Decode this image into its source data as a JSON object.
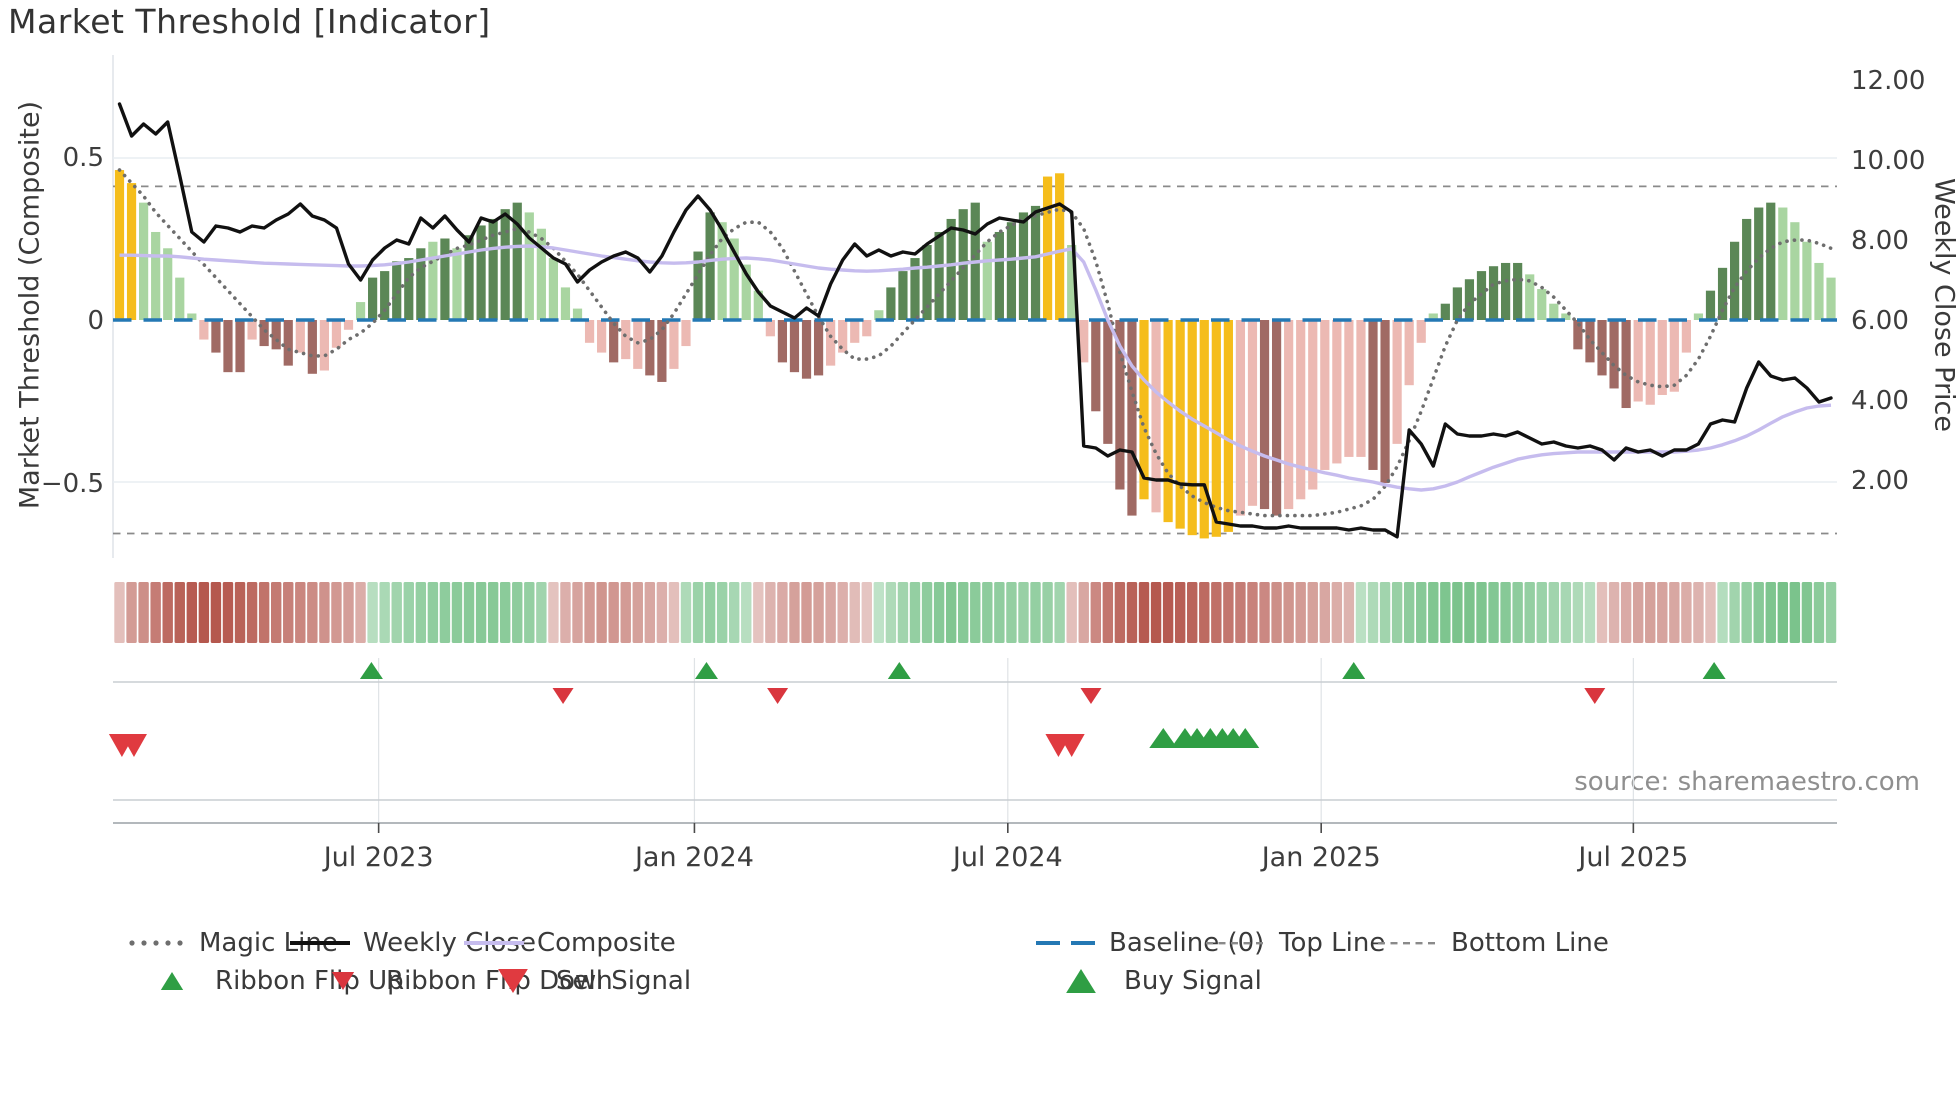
{
  "header": {
    "title": "Market Threshold [Indicator]"
  },
  "axes": {
    "left_title": "Market Threshold (Composite)",
    "right_title": "Weekly Close Price",
    "left_tick_labels": [
      "0.5",
      "0",
      "−0.5"
    ],
    "left_tick_values": [
      0.5,
      0,
      -0.5
    ],
    "right_tick_labels": [
      "12.00",
      "10.00",
      "8.00",
      "6.00",
      "4.00",
      "2.00"
    ],
    "right_tick_values": [
      12,
      10,
      8,
      6,
      4,
      2
    ],
    "x_tick_labels": [
      "Jul 2023",
      "Jan 2024",
      "Jul 2024",
      "Jan 2025",
      "Jul 2025"
    ],
    "x_tick_weeks": [
      21.5,
      47.7,
      73.7,
      99.7,
      125.6
    ]
  },
  "footer": {
    "source": "source: sharemaestro.com"
  },
  "palette": {
    "bar_yellow": "#f5bd1b",
    "bar_light_green": "#a9d5a1",
    "bar_dark_green": "#5b8756",
    "bar_light_pink": "#ecb9b3",
    "bar_dark_red": "#a06a64",
    "weekly_close": "#111111",
    "composite": "#c6bcee",
    "magic_line": "#6e6e6e",
    "baseline": "#2478b4",
    "top_bottom_line": "#8a8a8a",
    "flip_up_green": "#2f9e44",
    "flip_down_red": "#d9363e",
    "sell_red": "#e03a40",
    "buy_green": "#2f9e44",
    "ribbon_red": "#ab4136",
    "ribbon_green": "#31a24c",
    "grid": "#e9eef2",
    "spine": "#9aa0a6",
    "panel_line": "#c9cdd2",
    "tick_text": "#3d3d3d"
  },
  "legend": {
    "row1": [
      {
        "key": "magic-line",
        "label": "Magic Line",
        "swatch": "dots",
        "color": "#6e6e6e"
      },
      {
        "key": "weekly-close",
        "label": "Weekly Close",
        "swatch": "line",
        "color": "#111111"
      },
      {
        "key": "composite",
        "label": "Composite",
        "swatch": "line",
        "color": "#c6bcee"
      },
      {
        "key": "baseline",
        "label": "Baseline (0)",
        "swatch": "dash2",
        "color": "#2478b4"
      },
      {
        "key": "top-line",
        "label": "Top Line",
        "swatch": "dashes",
        "color": "#8a8a8a"
      },
      {
        "key": "bottom-line",
        "label": "Bottom Line",
        "swatch": "dashes",
        "color": "#8a8a8a"
      }
    ],
    "row2": [
      {
        "key": "ribbon-flip-up",
        "label": "Ribbon Flip Up",
        "swatch": "tri-up",
        "color": "#2f9e44",
        "size": 18
      },
      {
        "key": "ribbon-flip-down",
        "label": "Ribbon Flip Down",
        "swatch": "tri-down",
        "color": "#d9363e",
        "size": 18
      },
      {
        "key": "sell-signal",
        "label": "Sell Signal",
        "swatch": "tri-down",
        "color": "#e03a40",
        "size": 24
      },
      {
        "key": "buy-signal",
        "label": "Buy Signal",
        "swatch": "tri-up",
        "color": "#2f9e44",
        "size": 24
      }
    ]
  },
  "chart_data": [
    {
      "name": "main-indicator-panel",
      "type": "bar",
      "title": "Market Threshold [Indicator]",
      "xlabel": "",
      "ylabel": "Market Threshold (Composite)",
      "ylabel_right": "Weekly Close Price",
      "ylim_left": [
        -0.73,
        0.81
      ],
      "ylim_right": [
        0.05,
        12.6
      ],
      "top_line": 0.41,
      "bottom_line": -0.655,
      "baseline": 0,
      "x_unit": "week",
      "n_weeks": 143,
      "x_tick_labels": [
        "Jul 2023",
        "Jan 2024",
        "Jul 2024",
        "Jan 2025",
        "Jul 2025"
      ],
      "x_tick_weeks": [
        21.5,
        47.7,
        73.7,
        99.7,
        125.6
      ],
      "grid": "horizontal-only",
      "legend_position": "below",
      "bars": {
        "name": "Market Threshold histogram",
        "values": [
          0.46,
          0.42,
          0.36,
          0.27,
          0.22,
          0.13,
          0.02,
          -0.06,
          -0.1,
          -0.16,
          -0.16,
          -0.06,
          -0.08,
          -0.09,
          -0.14,
          -0.1,
          -0.165,
          -0.155,
          -0.085,
          -0.03,
          0.055,
          0.13,
          0.15,
          0.18,
          0.19,
          0.22,
          0.24,
          0.25,
          0.22,
          0.26,
          0.29,
          0.31,
          0.34,
          0.36,
          0.33,
          0.28,
          0.19,
          0.1,
          0.035,
          -0.07,
          -0.1,
          -0.13,
          -0.12,
          -0.15,
          -0.17,
          -0.19,
          -0.15,
          -0.08,
          0.21,
          0.33,
          0.3,
          0.25,
          0.17,
          0.09,
          -0.05,
          -0.13,
          -0.16,
          -0.18,
          -0.17,
          -0.14,
          -0.1,
          -0.07,
          -0.05,
          0.03,
          0.1,
          0.15,
          0.19,
          0.23,
          0.27,
          0.31,
          0.34,
          0.36,
          0.24,
          0.27,
          0.3,
          0.33,
          0.35,
          0.44,
          0.45,
          0.23,
          -0.13,
          -0.28,
          -0.38,
          -0.52,
          -0.6,
          -0.55,
          -0.59,
          -0.62,
          -0.64,
          -0.66,
          -0.67,
          -0.665,
          -0.65,
          -0.6,
          -0.57,
          -0.58,
          -0.6,
          -0.58,
          -0.55,
          -0.52,
          -0.46,
          -0.44,
          -0.42,
          -0.42,
          -0.46,
          -0.5,
          -0.38,
          -0.2,
          -0.07,
          0.02,
          0.05,
          0.1,
          0.125,
          0.15,
          0.165,
          0.175,
          0.175,
          0.14,
          0.095,
          0.05,
          0.02,
          -0.09,
          -0.13,
          -0.17,
          -0.21,
          -0.27,
          -0.25,
          -0.26,
          -0.23,
          -0.22,
          -0.1,
          0.02,
          0.09,
          0.16,
          0.24,
          0.31,
          0.345,
          0.36,
          0.345,
          0.3,
          0.24,
          0.175,
          0.13
        ],
        "colors": [
          "y",
          "y",
          "lg",
          "lg",
          "lg",
          "lg",
          "lg",
          "lp",
          "dr",
          "dr",
          "dr",
          "lp",
          "dr",
          "dr",
          "dr",
          "lp",
          "dr",
          "lp",
          "lp",
          "lp",
          "lg",
          "dg",
          "dg",
          "dg",
          "dg",
          "dg",
          "lg",
          "dg",
          "lg",
          "dg",
          "dg",
          "dg",
          "dg",
          "dg",
          "lg",
          "lg",
          "lg",
          "lg",
          "lg",
          "lp",
          "lp",
          "dr",
          "lp",
          "lp",
          "dr",
          "dr",
          "lp",
          "lp",
          "dg",
          "dg",
          "lg",
          "lg",
          "lg",
          "lg",
          "lp",
          "dr",
          "dr",
          "dr",
          "dr",
          "lp",
          "lp",
          "lp",
          "lp",
          "lg",
          "dg",
          "dg",
          "dg",
          "dg",
          "dg",
          "dg",
          "dg",
          "dg",
          "lg",
          "dg",
          "dg",
          "dg",
          "dg",
          "y",
          "y",
          "lg",
          "lp",
          "dr",
          "dr",
          "dr",
          "dr",
          "y",
          "lp",
          "y",
          "y",
          "y",
          "y",
          "y",
          "y",
          "lp",
          "lp",
          "dr",
          "dr",
          "lp",
          "lp",
          "lp",
          "lp",
          "lp",
          "lp",
          "lp",
          "dr",
          "dr",
          "lp",
          "lp",
          "lp",
          "lg",
          "dg",
          "dg",
          "dg",
          "dg",
          "dg",
          "dg",
          "dg",
          "lg",
          "lg",
          "lg",
          "lg",
          "dr",
          "dr",
          "dr",
          "dr",
          "dr",
          "lp",
          "lp",
          "lp",
          "lp",
          "lp",
          "lg",
          "dg",
          "dg",
          "dg",
          "dg",
          "dg",
          "dg",
          "lg",
          "lg",
          "lg",
          "lg",
          "lg"
        ]
      },
      "series": [
        {
          "name": "Weekly Close",
          "axis": "right",
          "style": "solid-black",
          "values": [
            11.4,
            10.6,
            10.9,
            10.65,
            10.95,
            9.6,
            8.2,
            7.95,
            8.35,
            8.3,
            8.2,
            8.35,
            8.3,
            8.5,
            8.65,
            8.9,
            8.6,
            8.5,
            8.3,
            7.4,
            7.0,
            7.5,
            7.8,
            8.0,
            7.9,
            8.55,
            8.3,
            8.6,
            8.25,
            7.95,
            8.55,
            8.45,
            8.65,
            8.4,
            8.05,
            7.8,
            7.55,
            7.4,
            6.95,
            7.25,
            7.45,
            7.6,
            7.7,
            7.55,
            7.2,
            7.6,
            8.2,
            8.75,
            9.1,
            8.75,
            8.25,
            7.7,
            7.15,
            6.7,
            6.35,
            6.2,
            6.05,
            6.3,
            6.1,
            6.9,
            7.5,
            7.9,
            7.6,
            7.75,
            7.6,
            7.7,
            7.65,
            7.9,
            8.1,
            8.3,
            8.25,
            8.15,
            8.4,
            8.55,
            8.5,
            8.45,
            8.7,
            8.8,
            8.9,
            8.7,
            2.85,
            2.8,
            2.6,
            2.75,
            2.7,
            2.05,
            2.0,
            2.0,
            1.9,
            1.88,
            1.88,
            0.95,
            0.9,
            0.85,
            0.85,
            0.8,
            0.8,
            0.85,
            0.8,
            0.8,
            0.8,
            0.8,
            0.75,
            0.8,
            0.75,
            0.75,
            0.58,
            3.25,
            2.9,
            2.35,
            3.4,
            3.15,
            3.1,
            3.1,
            3.15,
            3.1,
            3.2,
            3.05,
            2.9,
            2.95,
            2.85,
            2.8,
            2.85,
            2.75,
            2.5,
            2.8,
            2.7,
            2.75,
            2.6,
            2.75,
            2.75,
            2.9,
            3.4,
            3.5,
            3.45,
            4.3,
            4.95,
            4.6,
            4.5,
            4.55,
            4.3,
            3.95,
            4.05
          ]
        },
        {
          "name": "Composite",
          "axis": "right",
          "style": "solid-lavender",
          "values": [
            7.62,
            7.62,
            7.61,
            7.6,
            7.6,
            7.58,
            7.55,
            7.52,
            7.5,
            7.48,
            7.46,
            7.44,
            7.42,
            7.41,
            7.4,
            7.39,
            7.38,
            7.37,
            7.36,
            7.35,
            7.35,
            7.36,
            7.38,
            7.41,
            7.45,
            7.5,
            7.55,
            7.6,
            7.65,
            7.7,
            7.75,
            7.79,
            7.82,
            7.84,
            7.85,
            7.83,
            7.8,
            7.75,
            7.7,
            7.65,
            7.6,
            7.56,
            7.52,
            7.48,
            7.45,
            7.43,
            7.42,
            7.43,
            7.45,
            7.49,
            7.52,
            7.54,
            7.55,
            7.53,
            7.5,
            7.45,
            7.4,
            7.35,
            7.3,
            7.27,
            7.25,
            7.23,
            7.22,
            7.23,
            7.25,
            7.27,
            7.3,
            7.32,
            7.35,
            7.38,
            7.42,
            7.45,
            7.48,
            7.5,
            7.52,
            7.55,
            7.58,
            7.65,
            7.72,
            7.78,
            7.45,
            6.75,
            6.0,
            5.35,
            4.85,
            4.5,
            4.2,
            3.95,
            3.72,
            3.52,
            3.35,
            3.18,
            3.0,
            2.85,
            2.72,
            2.6,
            2.5,
            2.4,
            2.32,
            2.25,
            2.18,
            2.12,
            2.05,
            2.0,
            1.95,
            1.88,
            1.82,
            1.78,
            1.75,
            1.78,
            1.85,
            1.95,
            2.08,
            2.2,
            2.32,
            2.42,
            2.52,
            2.58,
            2.63,
            2.66,
            2.68,
            2.7,
            2.7,
            2.7,
            2.7,
            2.7,
            2.7,
            2.7,
            2.7,
            2.7,
            2.72,
            2.75,
            2.8,
            2.88,
            2.98,
            3.1,
            3.25,
            3.42,
            3.58,
            3.7,
            3.8,
            3.85,
            3.87
          ]
        },
        {
          "name": "Magic Line",
          "axis": "left",
          "style": "dotted-gray",
          "values": [
            0.46,
            0.42,
            0.38,
            0.33,
            0.29,
            0.25,
            0.21,
            0.17,
            0.13,
            0.09,
            0.05,
            0.01,
            -0.03,
            -0.06,
            -0.09,
            -0.1,
            -0.11,
            -0.11,
            -0.09,
            -0.06,
            -0.04,
            -0.01,
            0.03,
            0.08,
            0.13,
            0.16,
            0.18,
            0.2,
            0.22,
            0.23,
            0.245,
            0.26,
            0.27,
            0.28,
            0.27,
            0.25,
            0.22,
            0.18,
            0.14,
            0.09,
            0.04,
            -0.01,
            -0.05,
            -0.07,
            -0.06,
            -0.03,
            0.02,
            0.08,
            0.14,
            0.2,
            0.25,
            0.28,
            0.3,
            0.3,
            0.27,
            0.22,
            0.15,
            0.08,
            0.01,
            -0.05,
            -0.09,
            -0.12,
            -0.12,
            -0.11,
            -0.08,
            -0.04,
            0.0,
            0.04,
            0.08,
            0.12,
            0.16,
            0.2,
            0.24,
            0.27,
            0.29,
            0.31,
            0.32,
            0.33,
            0.34,
            0.33,
            0.28,
            0.18,
            0.05,
            -0.1,
            -0.22,
            -0.33,
            -0.41,
            -0.47,
            -0.51,
            -0.54,
            -0.56,
            -0.575,
            -0.585,
            -0.59,
            -0.595,
            -0.6,
            -0.6,
            -0.6,
            -0.6,
            -0.6,
            -0.595,
            -0.59,
            -0.58,
            -0.57,
            -0.55,
            -0.51,
            -0.45,
            -0.37,
            -0.28,
            -0.18,
            -0.08,
            0.0,
            0.05,
            0.08,
            0.11,
            0.12,
            0.125,
            0.12,
            0.1,
            0.07,
            0.03,
            -0.01,
            -0.06,
            -0.1,
            -0.14,
            -0.17,
            -0.19,
            -0.2,
            -0.205,
            -0.2,
            -0.17,
            -0.12,
            -0.05,
            0.03,
            0.1,
            0.15,
            0.19,
            0.22,
            0.24,
            0.245,
            0.245,
            0.235,
            0.22
          ]
        }
      ]
    },
    {
      "name": "ribbon-strip",
      "type": "heatmap",
      "description": "weekly red/green momentum ribbon; negative = red, positive = green, magnitude = intensity",
      "values": [
        -0.15,
        -0.45,
        -0.55,
        -0.7,
        -0.85,
        -0.92,
        -0.97,
        -1.0,
        -1.0,
        -0.97,
        -0.92,
        -0.85,
        -0.78,
        -0.72,
        -0.67,
        -0.62,
        -0.57,
        -0.52,
        -0.47,
        -0.42,
        -0.3,
        0.18,
        0.28,
        0.35,
        0.4,
        0.45,
        0.48,
        0.5,
        0.52,
        0.54,
        0.55,
        0.55,
        0.52,
        0.5,
        0.45,
        0.35,
        -0.12,
        -0.28,
        -0.38,
        -0.45,
        -0.5,
        -0.48,
        -0.45,
        -0.4,
        -0.35,
        -0.28,
        -0.15,
        0.25,
        0.4,
        0.45,
        0.4,
        0.3,
        0.18,
        -0.12,
        -0.25,
        -0.32,
        -0.4,
        -0.45,
        -0.4,
        -0.35,
        -0.28,
        -0.18,
        -0.1,
        0.12,
        0.25,
        0.35,
        0.45,
        0.5,
        0.55,
        0.6,
        0.55,
        0.52,
        0.5,
        0.48,
        0.45,
        0.42,
        0.45,
        0.42,
        0.35,
        -0.15,
        -0.35,
        -0.6,
        -0.75,
        -0.85,
        -0.92,
        -0.98,
        -1.0,
        -0.98,
        -0.94,
        -0.9,
        -0.85,
        -0.8,
        -0.75,
        -0.7,
        -0.65,
        -0.6,
        -0.55,
        -0.5,
        -0.45,
        -0.4,
        -0.35,
        -0.3,
        -0.25,
        0.15,
        0.25,
        0.35,
        0.42,
        0.5,
        0.55,
        0.6,
        0.62,
        0.65,
        0.65,
        0.62,
        0.58,
        0.55,
        0.5,
        0.45,
        0.4,
        0.35,
        0.3,
        0.25,
        0.18,
        -0.15,
        -0.25,
        -0.32,
        -0.38,
        -0.4,
        -0.38,
        -0.35,
        -0.3,
        -0.25,
        -0.15,
        0.2,
        0.35,
        0.45,
        0.55,
        0.62,
        0.68,
        0.65,
        0.6,
        0.52,
        0.45
      ]
    },
    {
      "name": "signal-markers",
      "type": "scatter",
      "ribbon_flip_up_weeks": [
        20.9,
        48.7,
        64.7,
        102.4,
        132.3
      ],
      "ribbon_flip_down_weeks": [
        36.8,
        54.6,
        80.6,
        122.4
      ],
      "sell_signal_weeks": [
        0.2,
        1.2,
        77.9,
        79.0
      ],
      "buy_signal_weeks": [
        86.6,
        88.4,
        89.4,
        90.5,
        91.5,
        92.4,
        93.4
      ]
    }
  ]
}
